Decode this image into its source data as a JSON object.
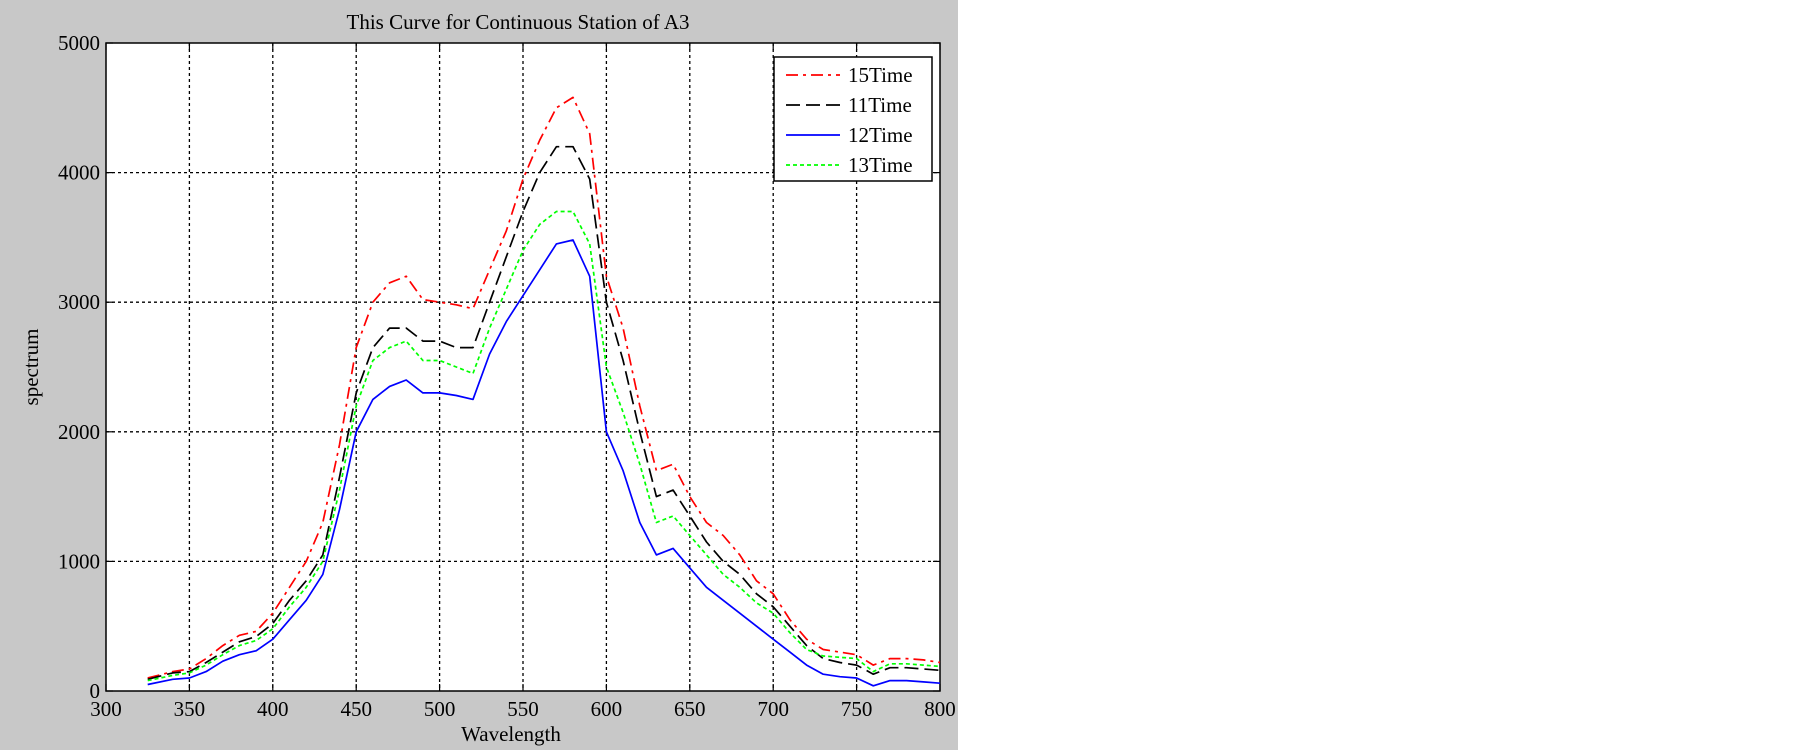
{
  "chart_data": {
    "type": "line",
    "title": "This Curve for Continuous Station of A3",
    "xlabel": "Wavelength",
    "ylabel": "spectrum",
    "xlim": [
      300,
      800
    ],
    "ylim": [
      0,
      5000
    ],
    "xticks": [
      300,
      350,
      400,
      450,
      500,
      550,
      600,
      650,
      700,
      750,
      800
    ],
    "yticks": [
      0,
      1000,
      2000,
      3000,
      4000,
      5000
    ],
    "xtick_labels": [
      "300",
      "350",
      "400",
      "450",
      "500",
      "550",
      "600",
      "650",
      "700",
      "750",
      "800"
    ],
    "ytick_labels": [
      "0",
      "1000",
      "2000",
      "3000",
      "4000",
      "5000"
    ],
    "grid": true,
    "legend_position": "top-right",
    "x": [
      325,
      340,
      350,
      360,
      370,
      380,
      390,
      400,
      410,
      420,
      430,
      440,
      450,
      460,
      470,
      480,
      490,
      500,
      510,
      520,
      530,
      540,
      550,
      560,
      570,
      580,
      590,
      600,
      610,
      620,
      630,
      640,
      650,
      660,
      670,
      680,
      690,
      700,
      710,
      720,
      730,
      740,
      750,
      760,
      770,
      780,
      790,
      800
    ],
    "series": [
      {
        "name": "15Time",
        "color": "#ff0000",
        "style": "dash-dot",
        "values": [
          100,
          150,
          170,
          250,
          350,
          430,
          460,
          600,
          800,
          1000,
          1300,
          1900,
          2650,
          3000,
          3150,
          3200,
          3020,
          3000,
          2980,
          2950,
          3250,
          3550,
          3950,
          4250,
          4500,
          4580,
          4300,
          3200,
          2800,
          2200,
          1700,
          1750,
          1500,
          1300,
          1200,
          1050,
          850,
          750,
          550,
          400,
          320,
          300,
          280,
          200,
          250,
          250,
          240,
          220
        ]
      },
      {
        "name": "11Time",
        "color": "#000000",
        "style": "dash",
        "values": [
          90,
          140,
          150,
          220,
          300,
          380,
          420,
          520,
          700,
          850,
          1050,
          1650,
          2300,
          2650,
          2800,
          2800,
          2700,
          2700,
          2650,
          2650,
          3000,
          3350,
          3700,
          4000,
          4200,
          4200,
          3950,
          3000,
          2550,
          2000,
          1500,
          1550,
          1350,
          1150,
          1000,
          900,
          750,
          650,
          500,
          350,
          250,
          220,
          200,
          130,
          180,
          180,
          170,
          160
        ]
      },
      {
        "name": "12Time",
        "color": "#0000ff",
        "style": "solid",
        "values": [
          50,
          90,
          100,
          150,
          230,
          280,
          310,
          400,
          550,
          700,
          900,
          1400,
          2000,
          2250,
          2350,
          2400,
          2300,
          2300,
          2280,
          2250,
          2600,
          2850,
          3050,
          3250,
          3450,
          3480,
          3200,
          2000,
          1700,
          1300,
          1050,
          1100,
          950,
          800,
          700,
          600,
          500,
          400,
          300,
          200,
          130,
          110,
          100,
          40,
          80,
          80,
          70,
          60
        ]
      },
      {
        "name": "13Time",
        "color": "#00ff00",
        "style": "dotted",
        "values": [
          80,
          120,
          140,
          200,
          280,
          350,
          390,
          480,
          650,
          800,
          1000,
          1550,
          2200,
          2550,
          2650,
          2700,
          2550,
          2550,
          2500,
          2450,
          2800,
          3100,
          3400,
          3600,
          3700,
          3700,
          3450,
          2500,
          2150,
          1750,
          1300,
          1350,
          1200,
          1050,
          900,
          800,
          680,
          600,
          450,
          320,
          270,
          260,
          250,
          150,
          210,
          210,
          200,
          190
        ]
      }
    ]
  }
}
